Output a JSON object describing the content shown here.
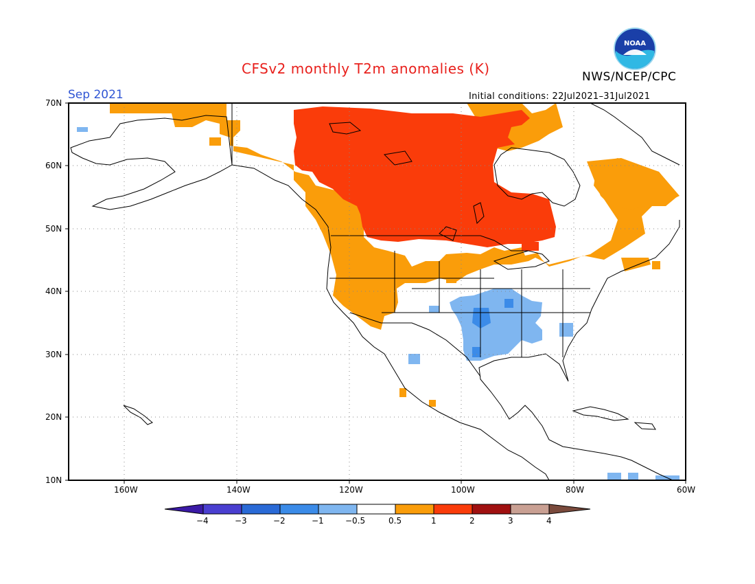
{
  "header": {
    "title": "CFSv2 monthly T2m anomalies (K)",
    "month": "Sep 2021",
    "initial_conditions": "Initial conditions: 22Jul2021–31Jul2021",
    "agency": "NWS/NCEP/CPC",
    "logo_text": "NOAA"
  },
  "map": {
    "lat_labels": [
      "70N",
      "60N",
      "50N",
      "40N",
      "30N",
      "20N",
      "10N"
    ],
    "lon_labels": [
      "160W",
      "140W",
      "120W",
      "100W",
      "80W",
      "60W"
    ]
  },
  "legend": {
    "labels": [
      "−4",
      "−3",
      "−2",
      "−1",
      "−0.5",
      "0.5",
      "1",
      "2",
      "3",
      "4"
    ],
    "colors": {
      "below_-4": "#3b1aa6",
      "-4_-3": "#4a3fd0",
      "-3_-2": "#2a6ad6",
      "-2_-1": "#3b8be8",
      "-1_-0.5": "#7fb6f0",
      "-0.5_0.5": "#ffffff",
      "0.5_1": "#fa9d0a",
      "1_2": "#fa3c0a",
      "2_3": "#a01010",
      "3_4": "#c9a093",
      "above_4": "#7a4a3c"
    }
  }
}
